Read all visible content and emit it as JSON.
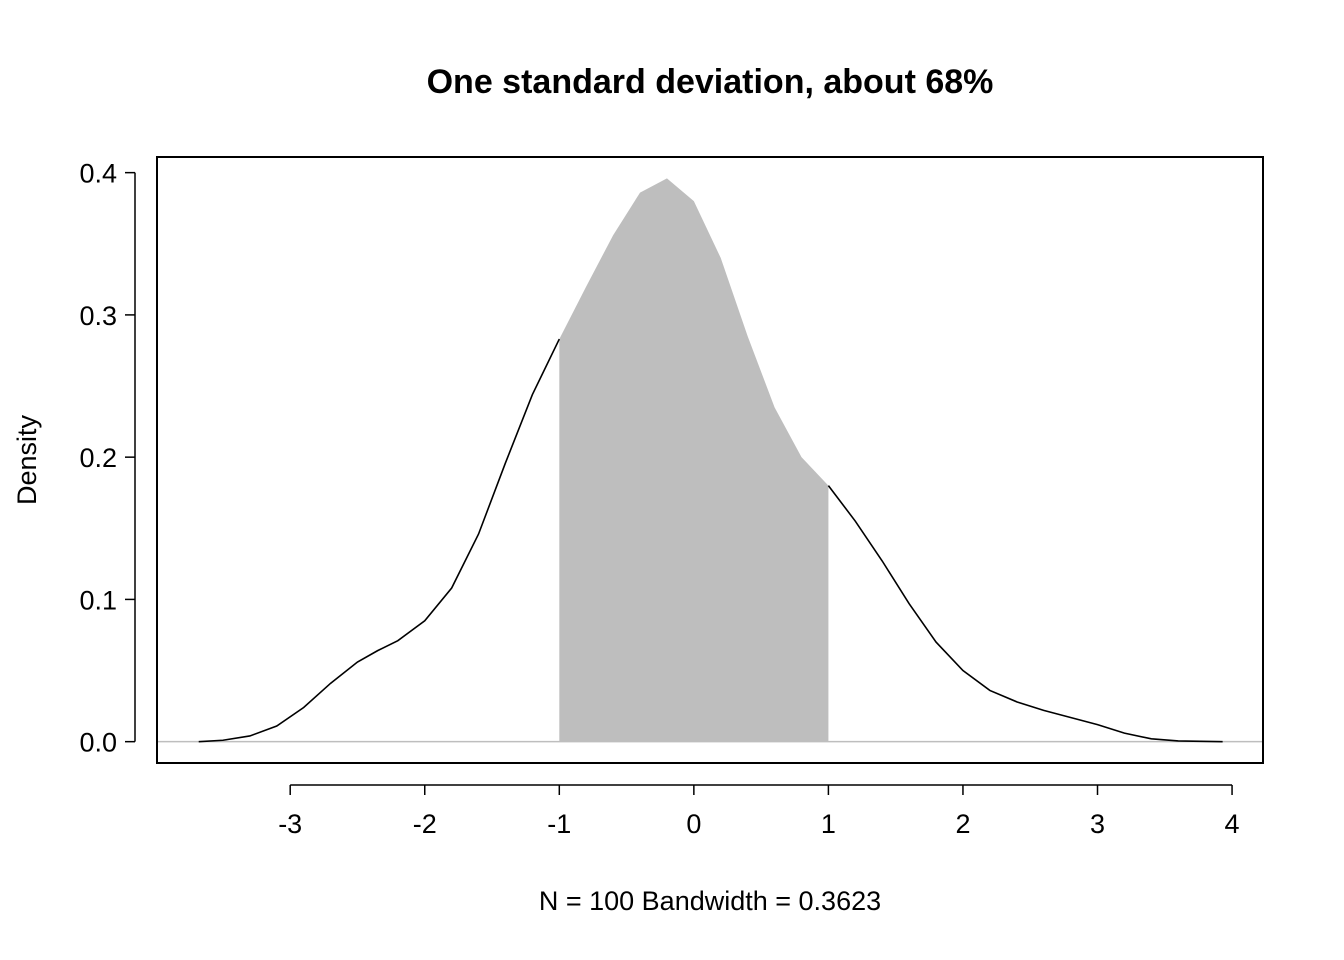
{
  "chart_data": {
    "type": "area",
    "title": "One standard deviation, about 68%",
    "xlabel": "N = 100   Bandwidth = 0.3623",
    "ylabel": "Density",
    "xlim": [
      -3.99,
      4.23
    ],
    "ylim": [
      -0.015,
      0.411
    ],
    "x_ticks": [
      -3,
      -2,
      -1,
      0,
      1,
      2,
      3,
      4
    ],
    "y_ticks": [
      0.0,
      0.1,
      0.2,
      0.3,
      0.4
    ],
    "grid": false,
    "baseline_y": 0,
    "colors": {
      "curve": "#000000",
      "shade": "#bebebe",
      "baseline": "#bebebe",
      "frame": "#000000"
    },
    "shaded_region": {
      "x_from": -1,
      "x_to": 1
    },
    "series": [
      {
        "x": [
          -3.68,
          -3.5,
          -3.3,
          -3.1,
          -2.9,
          -2.7,
          -2.5,
          -2.35,
          -2.2,
          -2.0,
          -1.8,
          -1.6,
          -1.4,
          -1.2,
          -1.0,
          -0.8,
          -0.6,
          -0.4,
          -0.2,
          0.0,
          0.2,
          0.4,
          0.6,
          0.8,
          1.0,
          1.2,
          1.4,
          1.6,
          1.8,
          2.0,
          2.2,
          2.4,
          2.6,
          2.8,
          3.0,
          3.2,
          3.4,
          3.6,
          3.93
        ],
        "y": [
          0.0,
          0.001,
          0.004,
          0.011,
          0.024,
          0.041,
          0.056,
          0.064,
          0.071,
          0.085,
          0.108,
          0.146,
          0.196,
          0.244,
          0.283,
          0.32,
          0.356,
          0.386,
          0.396,
          0.38,
          0.34,
          0.285,
          0.235,
          0.2,
          0.18,
          0.155,
          0.127,
          0.097,
          0.07,
          0.05,
          0.036,
          0.028,
          0.022,
          0.017,
          0.012,
          0.006,
          0.002,
          0.0005,
          0.0
        ]
      }
    ]
  }
}
